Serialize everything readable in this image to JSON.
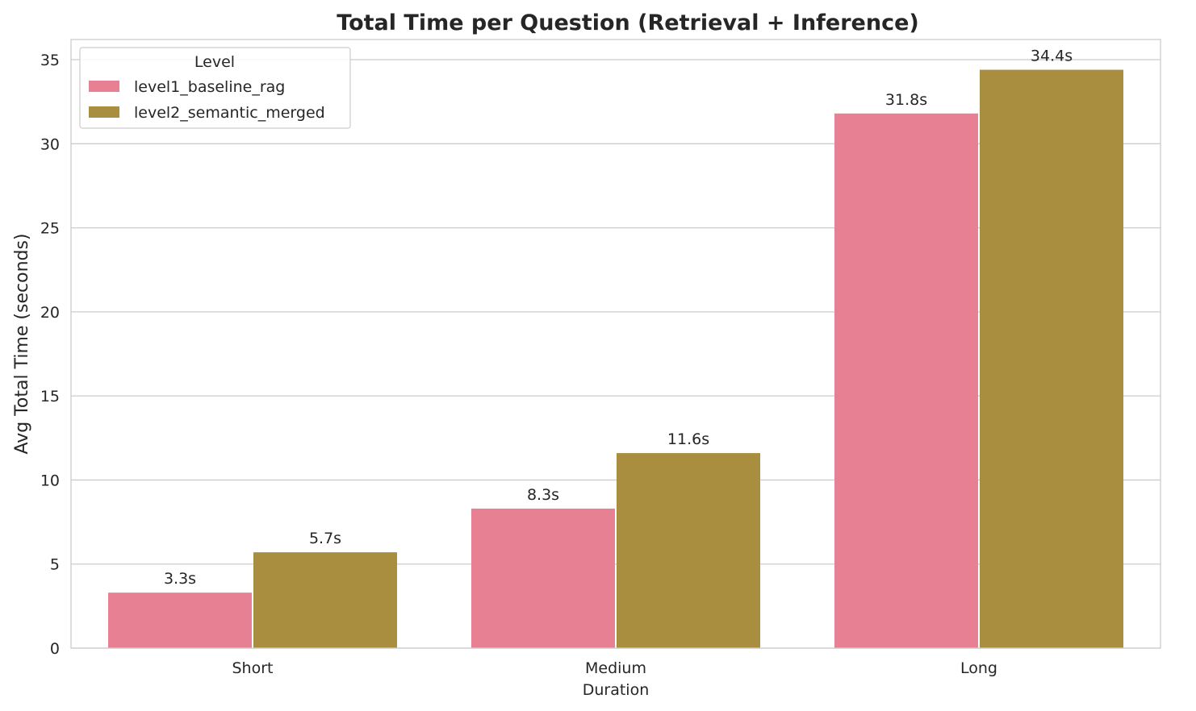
{
  "chart_data": {
    "type": "bar",
    "title": "Total Time per Question (Retrieval + Inference)",
    "xlabel": "Duration",
    "ylabel": "Avg Total Time (seconds)",
    "categories": [
      "Short",
      "Medium",
      "Long"
    ],
    "series": [
      {
        "name": "level1_baseline_rag",
        "color": "#e78093",
        "values": [
          3.3,
          8.3,
          31.8
        ],
        "labels": [
          "3.3s",
          "8.3s",
          "31.8s"
        ]
      },
      {
        "name": "level2_semantic_merged",
        "color": "#a98e40",
        "values": [
          5.7,
          11.6,
          34.4
        ],
        "labels": [
          "5.7s",
          "11.6s",
          "34.4s"
        ]
      }
    ],
    "ylim": [
      0,
      36.2
    ],
    "yticks": [
      0,
      5,
      10,
      15,
      20,
      25,
      30,
      35
    ],
    "grid": "horizontal",
    "legend": {
      "title": "Level",
      "position": "top-left"
    }
  }
}
